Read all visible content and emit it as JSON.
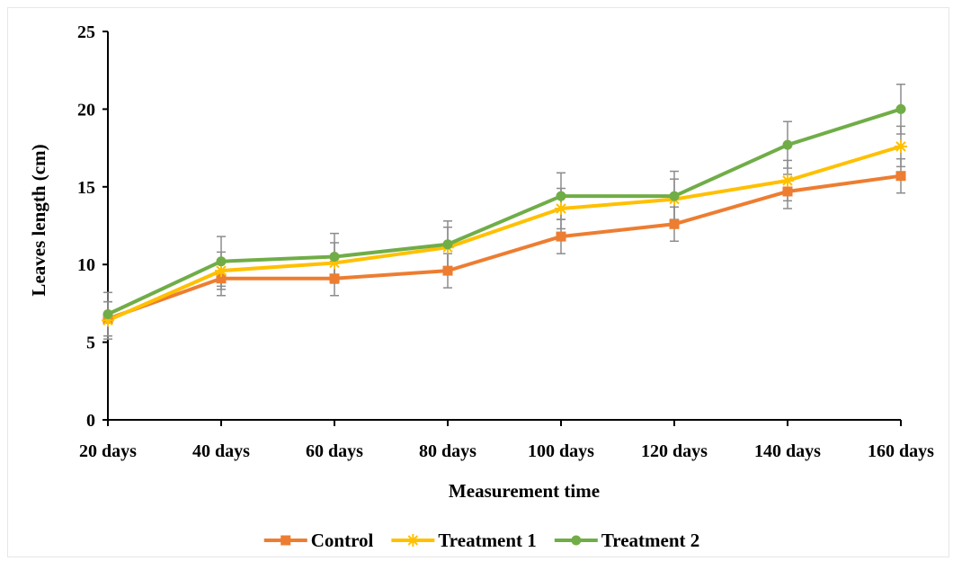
{
  "chart_data": {
    "type": "line",
    "title": "",
    "xlabel": "Measurement time",
    "ylabel": "Leaves length (cm)",
    "categories": [
      "20 days",
      "40 days",
      "60 days",
      "80 days",
      "100 days",
      "120 days",
      "140 days",
      "160 days"
    ],
    "ylim": [
      0,
      25
    ],
    "yticks": [
      0,
      5,
      10,
      15,
      20,
      25
    ],
    "grid": false,
    "legend_position": "bottom",
    "series": [
      {
        "name": "Control",
        "color": "#ED7D31",
        "marker": "square",
        "values": [
          6.5,
          9.1,
          9.1,
          9.6,
          11.8,
          12.6,
          14.7,
          15.7
        ],
        "errors": [
          1.1,
          1.1,
          1.1,
          1.1,
          1.1,
          1.1,
          1.1,
          1.1
        ]
      },
      {
        "name": "Treatment 1",
        "color": "#FFC000",
        "marker": "star",
        "values": [
          6.4,
          9.6,
          10.1,
          11.1,
          13.6,
          14.2,
          15.4,
          17.6
        ],
        "errors": [
          1.2,
          1.2,
          1.3,
          1.3,
          1.3,
          1.3,
          1.3,
          1.3
        ]
      },
      {
        "name": "Treatment 2",
        "color": "#70AD47",
        "marker": "circle",
        "values": [
          6.8,
          10.2,
          10.5,
          11.3,
          14.4,
          14.4,
          17.7,
          20.0
        ],
        "errors": [
          1.4,
          1.6,
          1.5,
          1.5,
          1.5,
          1.6,
          1.5,
          1.6
        ]
      }
    ]
  }
}
